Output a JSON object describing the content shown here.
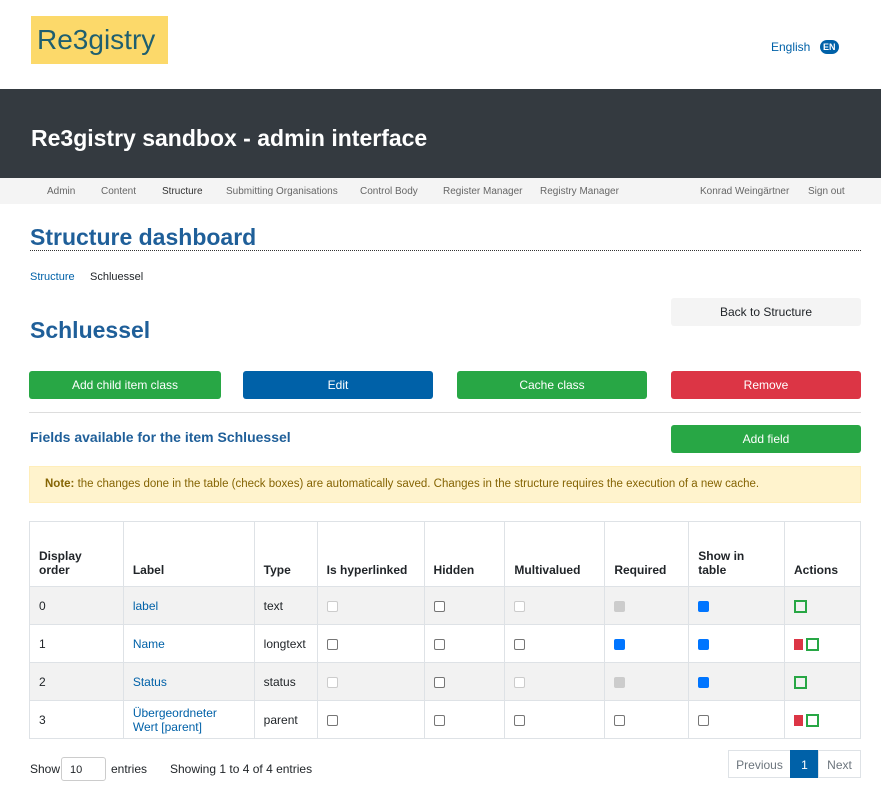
{
  "logo": "Re3gistry",
  "language": {
    "label": "English",
    "code": "EN"
  },
  "header": {
    "title": "Re3gistry sandbox - admin interface"
  },
  "nav": {
    "items": [
      "Admin",
      "Content",
      "Structure",
      "Submitting Organisations",
      "Control Body",
      "Register Manager",
      "Registry Manager"
    ],
    "user": "Konrad Weingärtner",
    "signout": "Sign out"
  },
  "page": {
    "title": "Structure dashboard",
    "breadcrumb": [
      "Structure",
      "Schluessel"
    ],
    "back": "Back to Structure",
    "item_title": "Schluessel",
    "buttons": [
      "Add child item class",
      "Edit",
      "Cache class",
      "Remove"
    ],
    "fields_title": "Fields available for the item Schluessel",
    "add_field": "Add field",
    "note": {
      "label": "Note:",
      "text": "the changes done in the table (check boxes) are automatically saved. Changes in the structure requires the execution of a new cache."
    }
  },
  "table": {
    "headers": [
      "Display order",
      "Label",
      "Type",
      "Is hyperlinked",
      "Hidden",
      "Multivalued",
      "Required",
      "Show in table",
      "Actions"
    ],
    "rows": [
      {
        "order": 0,
        "label": "label",
        "type": "text",
        "checks": [
          {
            "checked": false,
            "disabled": true
          },
          {
            "checked": false,
            "disabled": false
          },
          {
            "checked": false,
            "disabled": true
          },
          {
            "checked": true,
            "disabled": true
          },
          {
            "checked": true,
            "disabled": false
          }
        ],
        "delete": false
      },
      {
        "order": 1,
        "label": "Name",
        "type": "longtext",
        "checks": [
          {
            "checked": false,
            "disabled": false
          },
          {
            "checked": false,
            "disabled": false
          },
          {
            "checked": false,
            "disabled": false
          },
          {
            "checked": true,
            "disabled": false
          },
          {
            "checked": true,
            "disabled": false
          }
        ],
        "delete": true
      },
      {
        "order": 2,
        "label": "Status",
        "type": "status",
        "checks": [
          {
            "checked": false,
            "disabled": true
          },
          {
            "checked": false,
            "disabled": false
          },
          {
            "checked": false,
            "disabled": true
          },
          {
            "checked": true,
            "disabled": true
          },
          {
            "checked": true,
            "disabled": false
          }
        ],
        "delete": false
      },
      {
        "order": 3,
        "label": "Übergeordneter Wert [parent]",
        "type": "parent",
        "checks": [
          {
            "checked": false,
            "disabled": false
          },
          {
            "checked": false,
            "disabled": false
          },
          {
            "checked": false,
            "disabled": false
          },
          {
            "checked": false,
            "disabled": false
          },
          {
            "checked": false,
            "disabled": false
          }
        ],
        "delete": true
      }
    ]
  },
  "footer": {
    "show": "Show",
    "length": 10,
    "entries": "entries",
    "info": "Showing 1 to 4 of 4 entries",
    "pagination": [
      "Previous",
      1,
      "Next"
    ]
  }
}
